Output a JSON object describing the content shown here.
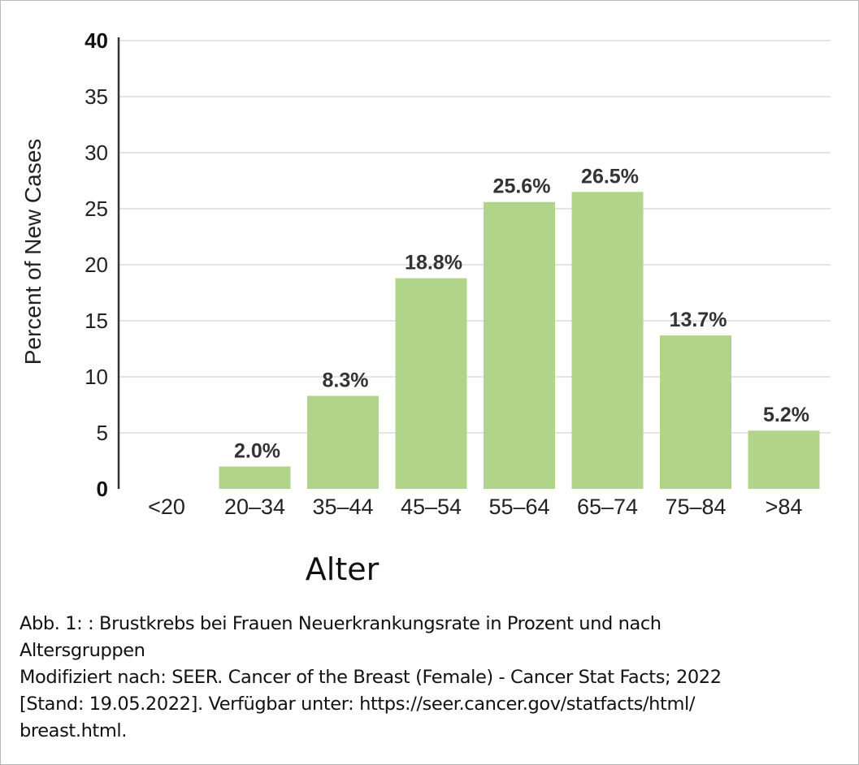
{
  "chart_data": {
    "type": "bar",
    "categories": [
      "<20",
      "20–34",
      "35–44",
      "45–54",
      "55–64",
      "65–74",
      "75–84",
      ">84"
    ],
    "values": [
      0,
      2.0,
      8.3,
      18.8,
      25.6,
      26.5,
      13.7,
      5.2
    ],
    "data_labels": [
      "",
      "2.0%",
      "8.3%",
      "18.8%",
      "25.6%",
      "26.5%",
      "13.7%",
      "5.2%"
    ],
    "ylabel": "Percent of New Cases",
    "xlabel": "Alter",
    "ylim": [
      0,
      40
    ],
    "yticks": [
      "0",
      "5",
      "10",
      "15",
      "20",
      "25",
      "30",
      "35",
      "40"
    ],
    "grid": true,
    "bar_color": "#b0d58a"
  },
  "caption": {
    "line1": "Abb. 1: : Brustkrebs bei Frauen Neuerkrankungsrate in Prozent und nach",
    "line2": "Altersgruppen",
    "line3": "Modifiziert nach: SEER. Cancer of the Breast (Female) - Cancer Stat Facts; 2022",
    "line4": "[Stand: 19.05.2022]. Verfügbar unter: https://seer.cancer.gov/statfacts/html/",
    "line5": "breast.html."
  }
}
